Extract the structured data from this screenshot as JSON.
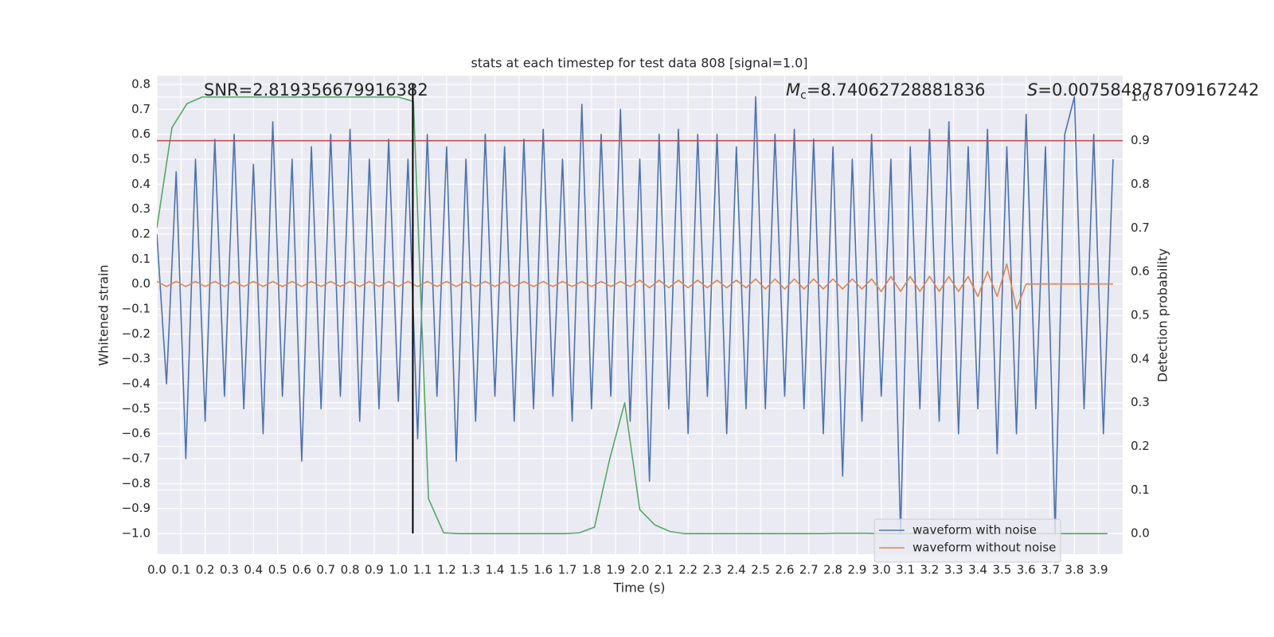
{
  "chart_data": {
    "type": "line",
    "title": "stats at each timestep for test data 808 [signal=1.0]",
    "xlabel": "Time (s)",
    "ylabel": "Whitened strain",
    "y2label": "Detection probability",
    "annotations": [
      {
        "text": "SNR=2.819356679916382"
      },
      {
        "symbol": "M",
        "subscript": "c",
        "text": "=8.74062728881836"
      },
      {
        "symbol": "S",
        "text": "=0.007584878709167242"
      }
    ],
    "xlim": [
      0,
      4.0
    ],
    "ylim": [
      -1.083,
      0.835
    ],
    "y2lim": [
      -0.047,
      1.049
    ],
    "grid": true,
    "legend": "lower right",
    "xticks": [
      {
        "value": 0,
        "label": "0.0"
      },
      0.1,
      0.2,
      0.3,
      0.4,
      0.5,
      0.6,
      0.7,
      0.8,
      0.9,
      {
        "value": 1,
        "label": "1.0"
      },
      1.1,
      1.2,
      1.3,
      1.4,
      1.5,
      1.6,
      1.7,
      1.8,
      1.9,
      {
        "value": 2,
        "label": "2.0"
      },
      2.1,
      2.2,
      2.3,
      2.4,
      2.5,
      2.6,
      2.7,
      2.8,
      2.9,
      {
        "value": 3,
        "label": "3.0"
      },
      3.1,
      3.2,
      3.3,
      3.4,
      3.5,
      3.6,
      3.7,
      3.8,
      3.9
    ],
    "yticks": [
      0.8,
      0.7,
      0.6,
      0.5,
      0.4,
      0.3,
      0.2,
      0.1,
      {
        "value": 0,
        "label": "0.0"
      },
      {
        "value": -0.1,
        "label": "−0.1"
      },
      {
        "value": -0.2,
        "label": "−0.2"
      },
      {
        "value": -0.3,
        "label": "−0.3"
      },
      {
        "value": -0.4,
        "label": "−0.4"
      },
      {
        "value": -0.5,
        "label": "−0.5"
      },
      {
        "value": -0.6,
        "label": "−0.6"
      },
      {
        "value": -0.7,
        "label": "−0.7"
      },
      {
        "value": -0.8,
        "label": "−0.8"
      },
      {
        "value": -0.9,
        "label": "−0.9"
      },
      {
        "value": -1,
        "label": "−1.0"
      }
    ],
    "y2ticks": [
      {
        "value": 0,
        "label": "0.0"
      },
      0.1,
      0.2,
      0.3,
      0.4,
      0.5,
      0.6,
      0.7,
      0.8,
      0.9,
      {
        "value": 1,
        "label": "1.0"
      }
    ],
    "x": [
      0,
      0.04,
      0.08,
      0.12,
      0.16,
      0.2,
      0.24,
      0.28,
      0.32,
      0.36,
      0.4,
      0.44,
      0.48,
      0.52,
      0.56,
      0.6,
      0.64,
      0.68,
      0.72,
      0.76,
      0.8,
      0.84,
      0.88,
      0.92,
      0.96,
      1,
      1.04,
      1.08,
      1.12,
      1.16,
      1.2,
      1.24,
      1.28,
      1.32,
      1.36,
      1.4,
      1.44,
      1.48,
      1.52,
      1.56,
      1.6,
      1.64,
      1.68,
      1.72,
      1.76,
      1.8,
      1.84,
      1.88,
      1.92,
      1.96,
      2,
      2.04,
      2.08,
      2.12,
      2.16,
      2.2,
      2.24,
      2.28,
      2.32,
      2.36,
      2.4,
      2.44,
      2.48,
      2.52,
      2.56,
      2.6,
      2.64,
      2.68,
      2.72,
      2.76,
      2.8,
      2.84,
      2.88,
      2.92,
      2.96,
      3,
      3.04,
      3.08,
      3.12,
      3.16,
      3.2,
      3.24,
      3.28,
      3.32,
      3.36,
      3.4,
      3.44,
      3.48,
      3.52,
      3.56,
      3.6,
      3.64,
      3.68,
      3.72,
      3.76,
      3.8,
      3.84,
      3.88,
      3.92,
      3.96
    ],
    "series": [
      {
        "name": "waveform with noise",
        "color": "#4c72b0",
        "values": [
          0.2,
          -0.4,
          0.45,
          -0.7,
          0.5,
          -0.55,
          0.58,
          -0.45,
          0.6,
          -0.5,
          0.48,
          -0.6,
          0.65,
          -0.45,
          0.5,
          -0.71,
          0.55,
          -0.5,
          0.6,
          -0.45,
          0.62,
          -0.55,
          0.5,
          -0.5,
          0.58,
          -0.47,
          0.5,
          -0.62,
          0.6,
          -0.45,
          0.55,
          -0.71,
          0.5,
          -0.55,
          0.6,
          -0.45,
          0.55,
          -0.55,
          0.58,
          -0.5,
          0.62,
          -0.45,
          0.5,
          -0.55,
          0.72,
          -0.5,
          0.6,
          -0.45,
          0.7,
          -0.55,
          0.5,
          -0.79,
          0.6,
          -0.5,
          0.62,
          -0.6,
          0.6,
          -0.45,
          0.6,
          -0.6,
          0.55,
          -0.5,
          0.75,
          -0.5,
          0.6,
          -0.45,
          0.62,
          -0.5,
          0.58,
          -0.6,
          0.55,
          -0.77,
          0.5,
          -0.55,
          0.6,
          -0.45,
          0.5,
          -1.0,
          0.55,
          -0.5,
          0.62,
          -0.55,
          0.65,
          -0.6,
          0.55,
          -0.5,
          0.62,
          -0.68,
          0.55,
          -0.6,
          0.68,
          -0.5,
          0.55,
          -1.0,
          0.6,
          0.75,
          -0.5,
          0.6,
          -0.6,
          0.5
        ]
      },
      {
        "name": "waveform without noise",
        "color": "#dd8452",
        "values": [
          0.01,
          -0.01,
          0.01,
          -0.01,
          0.01,
          -0.01,
          0.01,
          -0.01,
          0.01,
          -0.01,
          0.01,
          -0.01,
          0.01,
          -0.01,
          0.01,
          -0.01,
          0.01,
          -0.01,
          0.01,
          -0.01,
          0.01,
          -0.01,
          0.01,
          -0.01,
          0.01,
          -0.01,
          0.01,
          -0.01,
          0.01,
          -0.01,
          0.01,
          -0.01,
          0.01,
          -0.01,
          0.01,
          -0.01,
          0.01,
          -0.01,
          0.01,
          -0.01,
          0.01,
          -0.01,
          0.01,
          -0.01,
          0.01,
          -0.01,
          0.01,
          -0.01,
          0.01,
          -0.01,
          0.015,
          -0.015,
          0.015,
          -0.015,
          0.015,
          -0.015,
          0.015,
          -0.015,
          0.015,
          -0.015,
          0.015,
          -0.015,
          0.02,
          -0.02,
          0.02,
          -0.02,
          0.02,
          -0.02,
          0.02,
          -0.02,
          0.02,
          -0.02,
          0.02,
          -0.02,
          0.02,
          -0.03,
          0.03,
          -0.03,
          0.03,
          -0.03,
          0.03,
          -0.03,
          0.03,
          -0.03,
          0.03,
          -0.05,
          0.05,
          -0.05,
          0.08,
          -0.1,
          0,
          0,
          0,
          0,
          0,
          0,
          0,
          0,
          0,
          0
        ]
      },
      {
        "color": "#55a868",
        "axis": "y2",
        "x": [
          0,
          0.0625,
          0.125,
          0.1875,
          0.25,
          0.3125,
          0.375,
          0.4375,
          0.5,
          0.5625,
          0.625,
          0.6875,
          0.75,
          0.8125,
          0.875,
          0.9375,
          1,
          1.0625,
          1.125,
          1.1875,
          1.25,
          1.3125,
          1.375,
          1.4375,
          1.5,
          1.5625,
          1.625,
          1.6875,
          1.75,
          1.8125,
          1.875,
          1.9375,
          2,
          2.0625,
          2.125,
          2.1875,
          2.25,
          2.3125,
          2.375,
          2.4375,
          2.5,
          2.5625,
          2.625,
          2.6875,
          2.75,
          2.8125,
          2.875,
          2.9375,
          3,
          3.0625,
          3.125,
          3.1875,
          3.25,
          3.3125,
          3.375,
          3.4375,
          3.5,
          3.5625,
          3.625,
          3.6875,
          3.75,
          3.8125,
          3.875,
          3.9375
        ],
        "values": [
          0.7,
          0.93,
          0.985,
          1.0,
          1.0,
          1.0,
          1.0,
          1.0,
          1.0,
          1.0,
          1.0,
          1.0,
          1.0,
          1.0,
          1.0,
          1.0,
          1.0,
          0.99,
          0.08,
          0.002,
          0,
          0,
          0,
          0,
          0,
          0,
          0,
          0,
          0.002,
          0.015,
          0.17,
          0.3,
          0.055,
          0.02,
          0.005,
          0,
          0,
          0,
          0,
          0,
          0,
          0,
          0,
          0,
          0,
          0.001,
          0.001,
          0.001,
          0,
          0,
          0,
          0,
          0,
          0,
          0,
          0,
          0,
          0,
          0,
          0,
          0,
          0,
          0,
          0
        ]
      }
    ],
    "hlines": [
      {
        "value": 0.9,
        "axis": "y2",
        "color": "#c44e52"
      }
    ],
    "vlines": [
      {
        "value": 1.06,
        "color": "#000000"
      }
    ]
  }
}
